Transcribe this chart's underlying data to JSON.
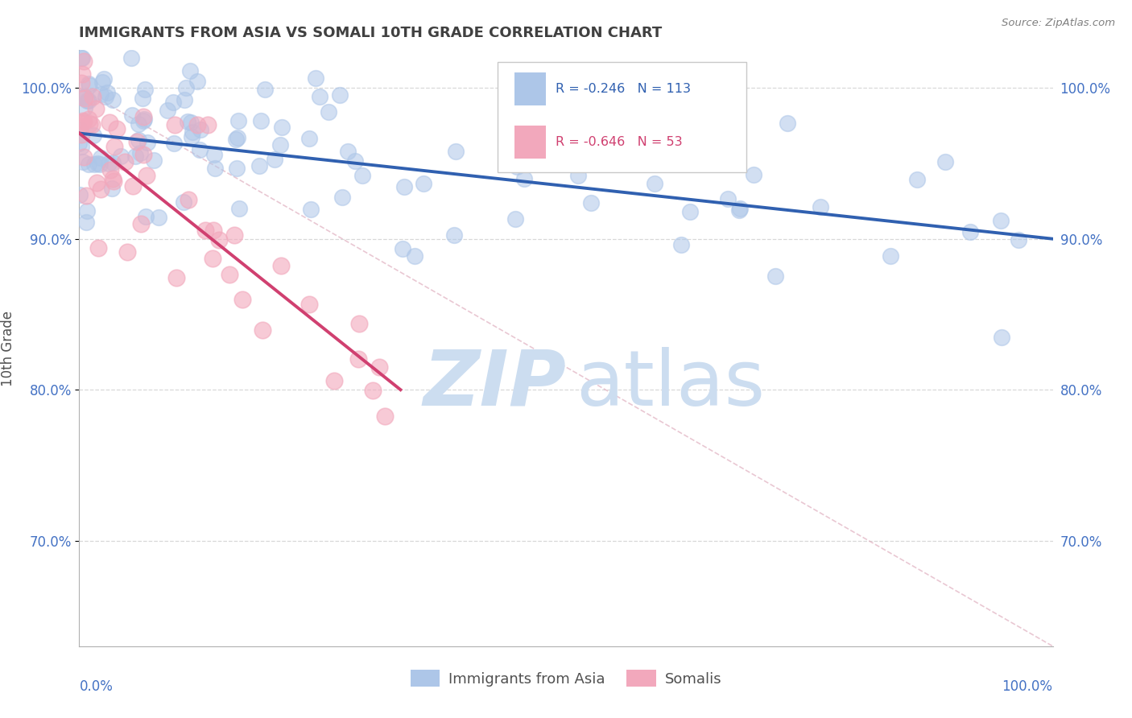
{
  "title": "IMMIGRANTS FROM ASIA VS SOMALI 10TH GRADE CORRELATION CHART",
  "source_text": "Source: ZipAtlas.com",
  "ylabel": "10th Grade",
  "legend_blue_label": "Immigrants from Asia",
  "legend_pink_label": "Somalis",
  "legend_text_blue": "R = -0.246   N = 113",
  "legend_text_pink": "R = -0.646   N = 53",
  "blue_color": "#adc6e8",
  "pink_color": "#f2a8bc",
  "blue_line_color": "#3060b0",
  "pink_line_color": "#d04070",
  "ref_line_color": "#c8c8c8",
  "title_color": "#404040",
  "axis_label_color": "#4472c4",
  "watermark_color": "#ccddf0",
  "background_color": "#ffffff",
  "grid_color": "#d8d8d8",
  "xlim": [
    0.0,
    1.0
  ],
  "ylim": [
    0.63,
    1.025
  ],
  "ytick_vals": [
    0.7,
    0.8,
    0.9,
    1.0
  ],
  "ytick_labels": [
    "70.0%",
    "80.0%",
    "90.0%",
    "100.0%"
  ],
  "blue_trend_x0": 0.0,
  "blue_trend_y0": 0.97,
  "blue_trend_x1": 1.0,
  "blue_trend_y1": 0.9,
  "pink_trend_x0": 0.0,
  "pink_trend_y0": 0.97,
  "pink_trend_x1": 0.33,
  "pink_trend_y1": 0.8,
  "ref_line_x0": 0.0,
  "ref_line_y0": 1.0,
  "ref_line_x1": 1.0,
  "ref_line_y1": 0.63
}
